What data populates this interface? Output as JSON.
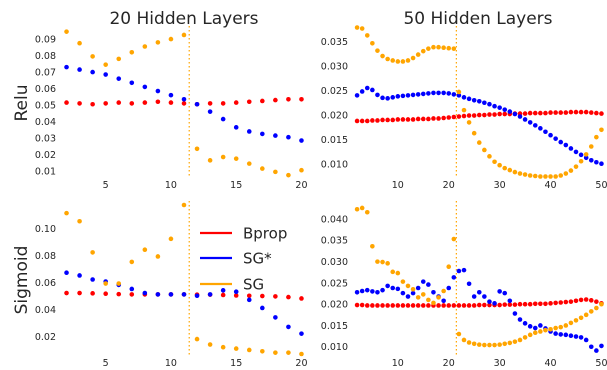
{
  "colors": {
    "bprop": "#ff0000",
    "sg_star": "#0000ff",
    "sg": "#ffa500"
  },
  "chart_data": [
    {
      "type": "scatter",
      "column_title": "20 Hidden Layers",
      "row_label": "Relu",
      "xlim": [
        1.5,
        20.5
      ],
      "ylim": [
        0.0075,
        0.096
      ],
      "xticks": [
        5,
        10,
        15,
        20
      ],
      "yticks": [
        0.01,
        0.02,
        0.03,
        0.04,
        0.05,
        0.06,
        0.07,
        0.08,
        0.09
      ],
      "ytick_labels": [
        "0.01",
        "0.02",
        "0.03",
        "0.04",
        "0.05",
        "0.06",
        "0.07",
        "0.08",
        "0.09"
      ],
      "vline_x": 11.4,
      "series": [
        {
          "key": "bprop",
          "x": [
            2,
            3,
            4,
            5,
            6,
            7,
            8,
            9,
            10,
            11,
            12,
            13,
            14,
            15,
            16,
            17,
            18,
            19,
            20
          ],
          "y": [
            0.052,
            0.0515,
            0.051,
            0.0515,
            0.052,
            0.0515,
            0.052,
            0.0525,
            0.052,
            0.0515,
            0.051,
            0.0515,
            0.0515,
            0.052,
            0.0525,
            0.053,
            0.0535,
            0.054,
            0.054
          ]
        },
        {
          "key": "sg_star",
          "x": [
            2,
            3,
            4,
            5,
            6,
            7,
            8,
            9,
            10,
            11,
            12,
            13,
            14,
            15,
            16,
            17,
            18,
            19,
            20
          ],
          "y": [
            0.0735,
            0.072,
            0.0705,
            0.069,
            0.0665,
            0.064,
            0.0615,
            0.059,
            0.0565,
            0.054,
            0.051,
            0.0465,
            0.042,
            0.037,
            0.0345,
            0.033,
            0.032,
            0.031,
            0.029
          ]
        },
        {
          "key": "sg",
          "x": [
            2,
            3,
            4,
            5,
            6,
            7,
            8,
            9,
            10,
            11,
            12,
            13,
            14,
            15,
            16,
            17,
            18,
            19,
            20
          ],
          "y": [
            0.095,
            0.088,
            0.08,
            0.075,
            0.0785,
            0.0825,
            0.086,
            0.0885,
            0.0905,
            0.093,
            0.024,
            0.017,
            0.019,
            0.018,
            0.015,
            0.012,
            0.01,
            0.008,
            0.011
          ]
        }
      ]
    },
    {
      "type": "scatter",
      "column_title": "50 Hidden Layers",
      "row_label": "",
      "xlim": [
        1,
        50.5
      ],
      "ylim": [
        0.0078,
        0.0375
      ],
      "xticks": [
        10,
        20,
        30,
        40,
        50
      ],
      "yticks": [
        0.01,
        0.015,
        0.02,
        0.025,
        0.03,
        0.035
      ],
      "ytick_labels": [
        "0.010",
        "0.015",
        "0.020",
        "0.025",
        "0.030",
        "0.035"
      ],
      "vline_x": 21.5,
      "series": [
        {
          "key": "bprop",
          "x": [
            2,
            3,
            4,
            5,
            6,
            7,
            8,
            9,
            10,
            11,
            12,
            13,
            14,
            15,
            16,
            17,
            18,
            19,
            20,
            21,
            22,
            23,
            24,
            25,
            26,
            27,
            28,
            29,
            30,
            31,
            32,
            33,
            34,
            35,
            36,
            37,
            38,
            39,
            40,
            41,
            42,
            43,
            44,
            45,
            46,
            47,
            48,
            49,
            50
          ],
          "y": [
            0.019,
            0.019,
            0.019,
            0.0191,
            0.0191,
            0.0192,
            0.0192,
            0.0192,
            0.0193,
            0.0193,
            0.0193,
            0.0193,
            0.0194,
            0.0194,
            0.0194,
            0.0195,
            0.0195,
            0.0196,
            0.0197,
            0.0198,
            0.0199,
            0.02,
            0.0201,
            0.0201,
            0.0202,
            0.0202,
            0.0203,
            0.0203,
            0.0204,
            0.0204,
            0.0204,
            0.0205,
            0.0205,
            0.0205,
            0.0206,
            0.0206,
            0.0206,
            0.0206,
            0.0207,
            0.0207,
            0.0207,
            0.0207,
            0.0208,
            0.0208,
            0.0208,
            0.0208,
            0.0207,
            0.0206,
            0.0205
          ]
        },
        {
          "key": "sg_star",
          "x": [
            2,
            3,
            4,
            5,
            6,
            7,
            8,
            9,
            10,
            11,
            12,
            13,
            14,
            15,
            16,
            17,
            18,
            19,
            20,
            21,
            22,
            23,
            24,
            25,
            26,
            27,
            28,
            29,
            30,
            31,
            32,
            33,
            34,
            35,
            36,
            37,
            38,
            39,
            40,
            41,
            42,
            43,
            44,
            45,
            46,
            47,
            48,
            49,
            50
          ],
          "y": [
            0.0242,
            0.025,
            0.0257,
            0.0253,
            0.0243,
            0.0237,
            0.0236,
            0.0238,
            0.024,
            0.0241,
            0.0242,
            0.0243,
            0.0244,
            0.0245,
            0.0246,
            0.0247,
            0.0247,
            0.0247,
            0.0246,
            0.0244,
            0.0242,
            0.0238,
            0.0235,
            0.0232,
            0.023,
            0.0227,
            0.0224,
            0.022,
            0.0217,
            0.0213,
            0.0209,
            0.0204,
            0.0199,
            0.0193,
            0.0187,
            0.0181,
            0.0175,
            0.0168,
            0.0161,
            0.0154,
            0.0147,
            0.0141,
            0.0134,
            0.0127,
            0.0121,
            0.0115,
            0.011,
            0.0106,
            0.0103
          ]
        },
        {
          "key": "sg",
          "x": [
            2,
            3,
            4,
            5,
            6,
            7,
            8,
            9,
            10,
            11,
            12,
            13,
            14,
            15,
            16,
            17,
            18,
            19,
            20,
            21,
            22,
            23,
            24,
            25,
            26,
            27,
            28,
            29,
            30,
            31,
            32,
            33,
            34,
            35,
            36,
            37,
            38,
            39,
            40,
            41,
            42,
            43,
            44,
            45,
            46,
            47,
            48,
            49,
            50
          ],
          "y": [
            0.038,
            0.0378,
            0.0364,
            0.0348,
            0.0333,
            0.0322,
            0.0316,
            0.0313,
            0.0311,
            0.0311,
            0.0313,
            0.0318,
            0.0325,
            0.0332,
            0.0337,
            0.034,
            0.034,
            0.0339,
            0.0338,
            0.0337,
            0.0249,
            0.0212,
            0.0187,
            0.0165,
            0.0146,
            0.0131,
            0.0118,
            0.0107,
            0.01,
            0.0094,
            0.009,
            0.0086,
            0.0083,
            0.0081,
            0.0079,
            0.0078,
            0.0077,
            0.0077,
            0.0077,
            0.0077,
            0.0079,
            0.0083,
            0.0089,
            0.0097,
            0.0108,
            0.0122,
            0.0138,
            0.0157,
            0.0172
          ]
        }
      ]
    },
    {
      "type": "scatter",
      "column_title": "",
      "row_label": "Sigmoid",
      "xlim": [
        1.5,
        20.5
      ],
      "ylim": [
        0.008,
        0.118
      ],
      "xticks": [
        5,
        10,
        15,
        20
      ],
      "yticks": [
        0.02,
        0.04,
        0.06,
        0.08,
        0.1
      ],
      "ytick_labels": [
        "0.02",
        "0.04",
        "0.06",
        "0.08",
        "0.10"
      ],
      "vline_x": 11.4,
      "series": [
        {
          "key": "bprop",
          "x": [
            2,
            3,
            4,
            5,
            6,
            7,
            8,
            9,
            10,
            11,
            12,
            13,
            14,
            15,
            16,
            17,
            18,
            19,
            20
          ],
          "y": [
            0.053,
            0.053,
            0.0528,
            0.0525,
            0.0522,
            0.052,
            0.052,
            0.052,
            0.052,
            0.052,
            0.0518,
            0.0518,
            0.0516,
            0.0512,
            0.051,
            0.0508,
            0.0505,
            0.05,
            0.049
          ]
        },
        {
          "key": "sg_star",
          "x": [
            2,
            3,
            4,
            5,
            6,
            7,
            8,
            9,
            10,
            11,
            12,
            13,
            14,
            15,
            16,
            17,
            18,
            19,
            20
          ],
          "y": [
            0.068,
            0.066,
            0.063,
            0.0615,
            0.059,
            0.056,
            0.053,
            0.052,
            0.052,
            0.052,
            0.051,
            0.052,
            0.055,
            0.054,
            0.048,
            0.042,
            0.035,
            0.028,
            0.023
          ]
        },
        {
          "key": "sg",
          "x": [
            2,
            3,
            4,
            5,
            6,
            7,
            8,
            9,
            10,
            11,
            12,
            13,
            14,
            15,
            16,
            17,
            18,
            19,
            20
          ],
          "y": [
            0.112,
            0.106,
            0.083,
            0.06,
            0.06,
            0.076,
            0.085,
            0.08,
            0.093,
            0.118,
            0.019,
            0.015,
            0.013,
            0.012,
            0.011,
            0.01,
            0.009,
            0.009,
            0.008
          ]
        }
      ]
    },
    {
      "type": "scatter",
      "column_title": "",
      "row_label": "",
      "xlim": [
        1,
        50.5
      ],
      "ylim": [
        0.0085,
        0.0435
      ],
      "xticks": [
        10,
        20,
        30,
        40,
        50
      ],
      "yticks": [
        0.01,
        0.015,
        0.02,
        0.025,
        0.03,
        0.035,
        0.04
      ],
      "ytick_labels": [
        "0.010",
        "0.015",
        "0.020",
        "0.025",
        "0.030",
        "0.035",
        "0.040"
      ],
      "vline_x": 21.5,
      "series": [
        {
          "key": "bprop",
          "x": [
            2,
            3,
            4,
            5,
            6,
            7,
            8,
            9,
            10,
            11,
            12,
            13,
            14,
            15,
            16,
            17,
            18,
            19,
            20,
            21,
            22,
            23,
            24,
            25,
            26,
            27,
            28,
            29,
            30,
            31,
            32,
            33,
            34,
            35,
            36,
            37,
            38,
            39,
            40,
            41,
            42,
            43,
            44,
            45,
            46,
            47,
            48,
            49,
            50
          ],
          "y": [
            0.02,
            0.02,
            0.0199,
            0.0199,
            0.0199,
            0.0199,
            0.0199,
            0.0199,
            0.0199,
            0.0199,
            0.0199,
            0.0199,
            0.0199,
            0.0199,
            0.0199,
            0.0199,
            0.0199,
            0.0199,
            0.0199,
            0.0199,
            0.0199,
            0.0199,
            0.0199,
            0.0199,
            0.02,
            0.02,
            0.02,
            0.02,
            0.02,
            0.0201,
            0.0201,
            0.0201,
            0.0202,
            0.0202,
            0.0202,
            0.0203,
            0.0203,
            0.0203,
            0.0204,
            0.0205,
            0.0206,
            0.0207,
            0.0208,
            0.021,
            0.0212,
            0.0213,
            0.0211,
            0.0208,
            0.0204
          ]
        },
        {
          "key": "sg_star",
          "x": [
            2,
            3,
            4,
            5,
            6,
            7,
            8,
            9,
            10,
            11,
            12,
            13,
            14,
            15,
            16,
            17,
            18,
            19,
            20,
            21,
            22,
            23,
            24,
            25,
            26,
            27,
            28,
            29,
            30,
            31,
            32,
            33,
            34,
            35,
            36,
            37,
            38,
            39,
            40,
            41,
            42,
            43,
            44,
            45,
            46,
            47,
            48,
            49,
            50
          ],
          "y": [
            0.023,
            0.0233,
            0.0235,
            0.0232,
            0.023,
            0.0235,
            0.0245,
            0.024,
            0.0238,
            0.0228,
            0.022,
            0.0228,
            0.024,
            0.0255,
            0.0248,
            0.023,
            0.022,
            0.021,
            0.024,
            0.0265,
            0.028,
            0.0282,
            0.025,
            0.022,
            0.023,
            0.022,
            0.0208,
            0.0204,
            0.0232,
            0.0228,
            0.021,
            0.018,
            0.0166,
            0.0157,
            0.015,
            0.0146,
            0.0152,
            0.0145,
            0.0138,
            0.0133,
            0.0131,
            0.013,
            0.0128,
            0.0126,
            0.0124,
            0.0118,
            0.0102,
            0.0093,
            0.0104
          ]
        },
        {
          "key": "sg",
          "x": [
            2,
            3,
            4,
            5,
            6,
            7,
            8,
            9,
            10,
            11,
            12,
            13,
            14,
            15,
            16,
            17,
            18,
            19,
            20,
            21,
            22,
            23,
            24,
            25,
            26,
            27,
            28,
            29,
            30,
            31,
            32,
            33,
            34,
            35,
            36,
            37,
            38,
            39,
            40,
            41,
            42,
            43,
            44,
            45,
            46,
            47,
            48,
            49,
            50
          ],
          "y": [
            0.0425,
            0.0428,
            0.0418,
            0.0338,
            0.0302,
            0.0301,
            0.0298,
            0.0278,
            0.0275,
            0.0255,
            0.0245,
            0.0237,
            0.0218,
            0.0225,
            0.0212,
            0.0205,
            0.0218,
            0.0233,
            0.029,
            0.0355,
            0.0132,
            0.0118,
            0.0112,
            0.0109,
            0.0107,
            0.0106,
            0.0106,
            0.0106,
            0.0107,
            0.0109,
            0.0111,
            0.0114,
            0.0118,
            0.0124,
            0.013,
            0.0135,
            0.0138,
            0.0141,
            0.0143,
            0.0146,
            0.0148,
            0.0152,
            0.0158,
            0.0164,
            0.017,
            0.0177,
            0.0185,
            0.0193,
            0.0202
          ]
        }
      ]
    }
  ],
  "legend": {
    "position": "center",
    "items": [
      {
        "key": "bprop",
        "label": "Bprop"
      },
      {
        "key": "sg_star",
        "label": "SG*"
      },
      {
        "key": "sg",
        "label": "SG"
      }
    ]
  }
}
